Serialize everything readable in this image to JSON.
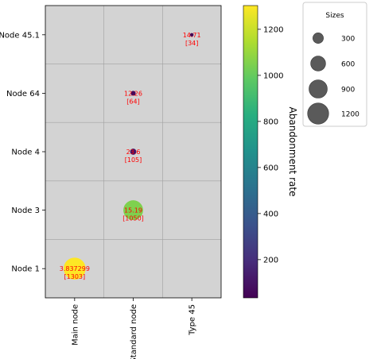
{
  "chart_data": {
    "type": "scatter",
    "x_categories": [
      "Main node",
      "Standard node",
      "Type 45"
    ],
    "y_categories": [
      "Node 1",
      "Node 3",
      "Node 4",
      "Node 64",
      "Node 45.1"
    ],
    "points": [
      {
        "x": "Main node",
        "y": "Node 1",
        "value_label": "3.837299",
        "count_label": "[1303]",
        "size": 1303,
        "color_value": 1303
      },
      {
        "x": "Standard node",
        "y": "Node 3",
        "value_label": "15.19",
        "count_label": "[1050]",
        "size": 1050,
        "color_value": 1050
      },
      {
        "x": "Standard node",
        "y": "Node 4",
        "value_label": "23.6",
        "count_label": "[105]",
        "size": 105,
        "color_value": 105
      },
      {
        "x": "Standard node",
        "y": "Node 64",
        "value_label": "12.26",
        "count_label": "[64]",
        "size": 64,
        "color_value": 64
      },
      {
        "x": "Type 45",
        "y": "Node 45.1",
        "value_label": "14.71",
        "count_label": "[34]",
        "size": 34,
        "color_value": 34
      }
    ],
    "grid": true,
    "colorbar": {
      "label": "Abandonment rate",
      "colormap": "viridis",
      "range": [
        34,
        1303
      ],
      "ticks": [
        200,
        400,
        600,
        800,
        1000,
        1200
      ]
    },
    "size_legend": {
      "title": "Sizes",
      "values": [
        300,
        600,
        900,
        1200
      ],
      "placement": "right"
    },
    "colors": {
      "axes_background": "#d3d3d3",
      "grid": "#a0a0a0",
      "point_label": "#ff0000"
    }
  }
}
